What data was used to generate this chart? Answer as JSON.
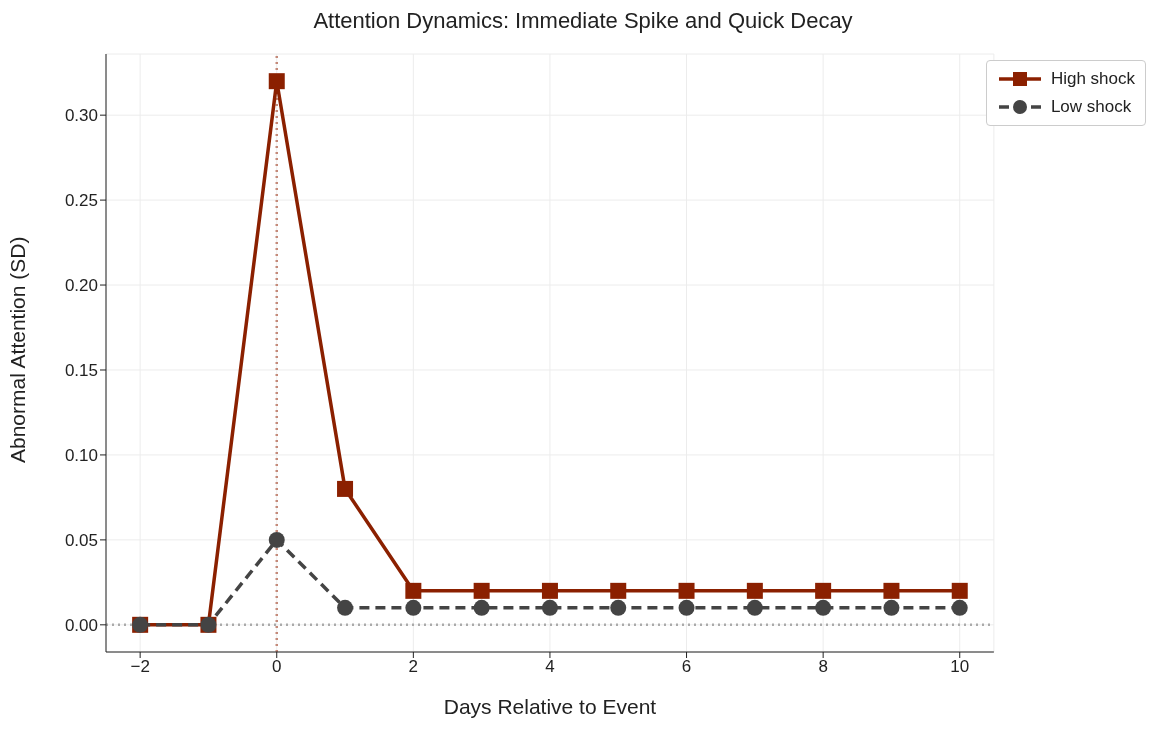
{
  "chart_data": {
    "type": "line",
    "title": "Attention Dynamics: Immediate Spike and Quick Decay",
    "xlabel": "Days Relative to Event",
    "ylabel": "Abnormal Attention (SD)",
    "x": [
      -2,
      -1,
      0,
      1,
      2,
      3,
      4,
      5,
      6,
      7,
      8,
      9,
      10
    ],
    "series": [
      {
        "name": "High shock",
        "color": "#8b2000",
        "marker": "square",
        "line_style": "solid",
        "values": [
          0,
          0,
          0.32,
          0.08,
          0.02,
          0.02,
          0.02,
          0.02,
          0.02,
          0.02,
          0.02,
          0.02,
          0.02
        ]
      },
      {
        "name": "Low shock",
        "color": "#444444",
        "marker": "circle",
        "line_style": "dashed",
        "values": [
          0,
          0,
          0.05,
          0.01,
          0.01,
          0.01,
          0.01,
          0.01,
          0.01,
          0.01,
          0.01,
          0.01,
          0.01
        ]
      }
    ],
    "xlim": [
      -2.5,
      10.5
    ],
    "xticks": [
      {
        "value": -2,
        "label": "−2"
      },
      0,
      2,
      4,
      6,
      8,
      10
    ],
    "ylim": [
      -0.016,
      0.336
    ],
    "yticks": [
      {
        "value": 0,
        "label": "0.00"
      },
      {
        "value": 0.05,
        "label": "0.05"
      },
      {
        "value": 0.1,
        "label": "0.10"
      },
      {
        "value": 0.15,
        "label": "0.15"
      },
      {
        "value": 0.2,
        "label": "0.20"
      },
      {
        "value": 0.25,
        "label": "0.25"
      },
      {
        "value": 0.3,
        "label": "0.30"
      }
    ],
    "ref_lines": [
      {
        "axis": "x",
        "value": 0,
        "color": "#c48a7a",
        "line_style": "dotted"
      },
      {
        "axis": "y",
        "value": 0,
        "color": "#aaaaaa",
        "line_style": "dotted"
      }
    ],
    "grid": true,
    "legend": "top right"
  }
}
